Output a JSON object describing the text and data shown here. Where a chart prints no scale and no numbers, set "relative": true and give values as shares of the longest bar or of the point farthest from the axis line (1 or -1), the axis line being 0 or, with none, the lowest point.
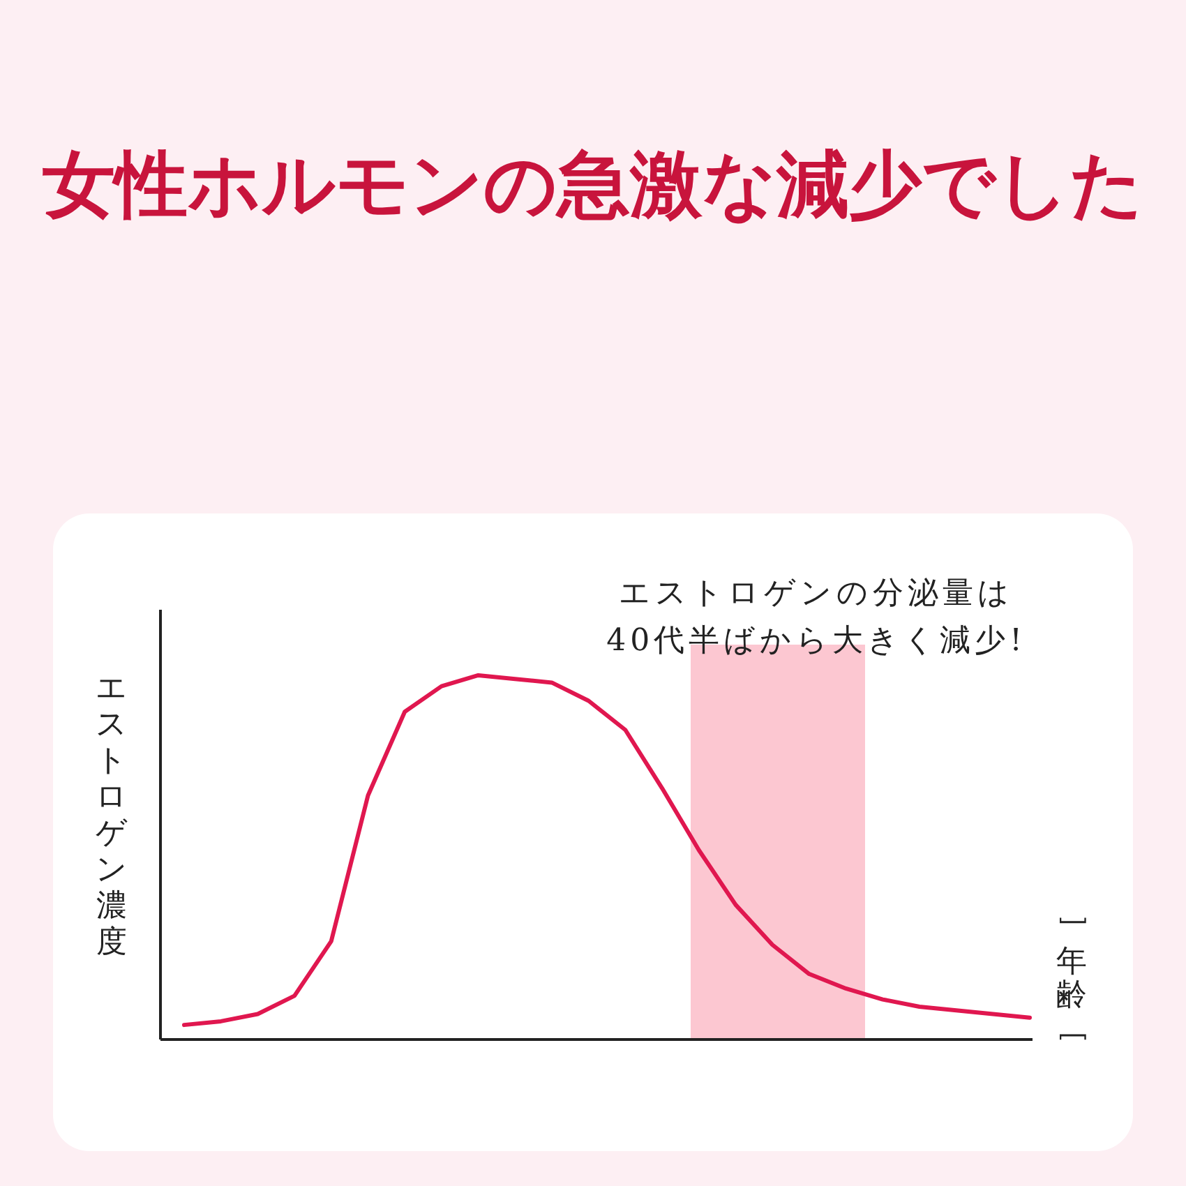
{
  "chart_data": {
    "type": "line",
    "title": "女性ホルモンの急激な減少でした",
    "ylabel": "エストロゲン濃度",
    "xlabel": "﹇年齢﹈",
    "annotations": [
      "エストロゲンの分泌量は\n40代半ばから大きく減少!"
    ],
    "relative": true,
    "color": "#e0174f",
    "categories": [
      null,
      null,
      null,
      null,
      null,
      null,
      null,
      null,
      null,
      null,
      null,
      null,
      null,
      null,
      null,
      null,
      null,
      null,
      null,
      null,
      null,
      null,
      null,
      null
    ],
    "values": [
      0.04,
      0.05,
      0.07,
      0.12,
      0.27,
      0.67,
      0.9,
      0.97,
      1,
      0.99,
      0.98,
      0.93,
      0.85,
      0.69,
      0.52,
      0.37,
      0.26,
      0.18,
      0.14,
      0.11,
      0.09,
      0.08,
      0.07,
      0.06
    ]
  }
}
